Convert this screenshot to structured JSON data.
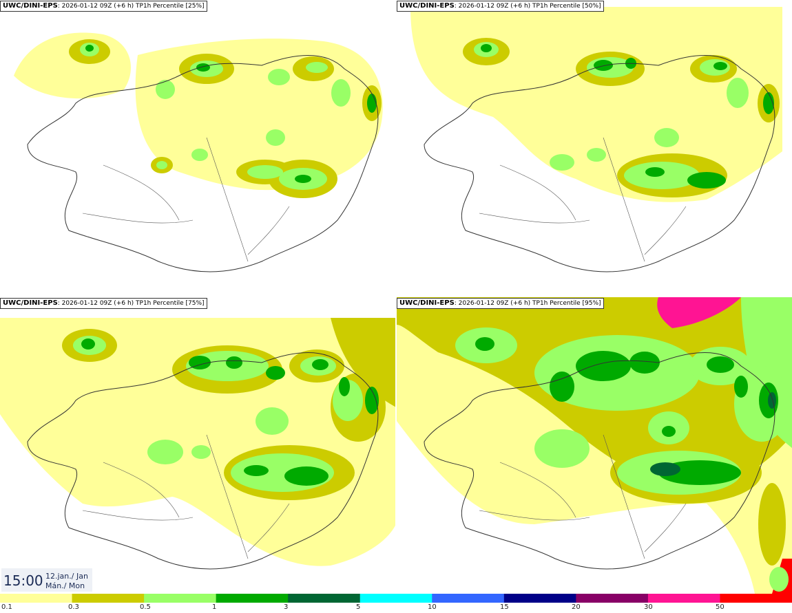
{
  "panels": [
    {
      "model": "UWC/DINI-EPS",
      "run": ": 2026-01-12 09Z (+6 h)",
      "product": "TP1h Percentile [25%]"
    },
    {
      "model": "UWC/DINI-EPS",
      "run": ": 2026-01-12 09Z (+6 h)",
      "product": "TP1h Percentile [50%]"
    },
    {
      "model": "UWC/DINI-EPS",
      "run": ": 2026-01-12 09Z (+6 h)",
      "product": "TP1h Percentile [75%]"
    },
    {
      "model": "UWC/DINI-EPS",
      "run": ": 2026-01-12 09Z (+6 h)",
      "product": "TP1h Percentile [95%]"
    }
  ],
  "valid_time": {
    "time": "15:00",
    "date_line1": "12.jan./ Jan",
    "date_line2": "Mán./ Mon"
  },
  "legend": {
    "levels": [
      "0.1",
      "0.3",
      "0.5",
      "1",
      "3",
      "5",
      "10",
      "15",
      "20",
      "30",
      "50"
    ],
    "colors": [
      "#ffff99",
      "#cccc00",
      "#99ff66",
      "#00aa00",
      "#006633",
      "#00ffff",
      "#3366ff",
      "#000088",
      "#880066",
      "#ff1493",
      "#ff0000"
    ]
  }
}
